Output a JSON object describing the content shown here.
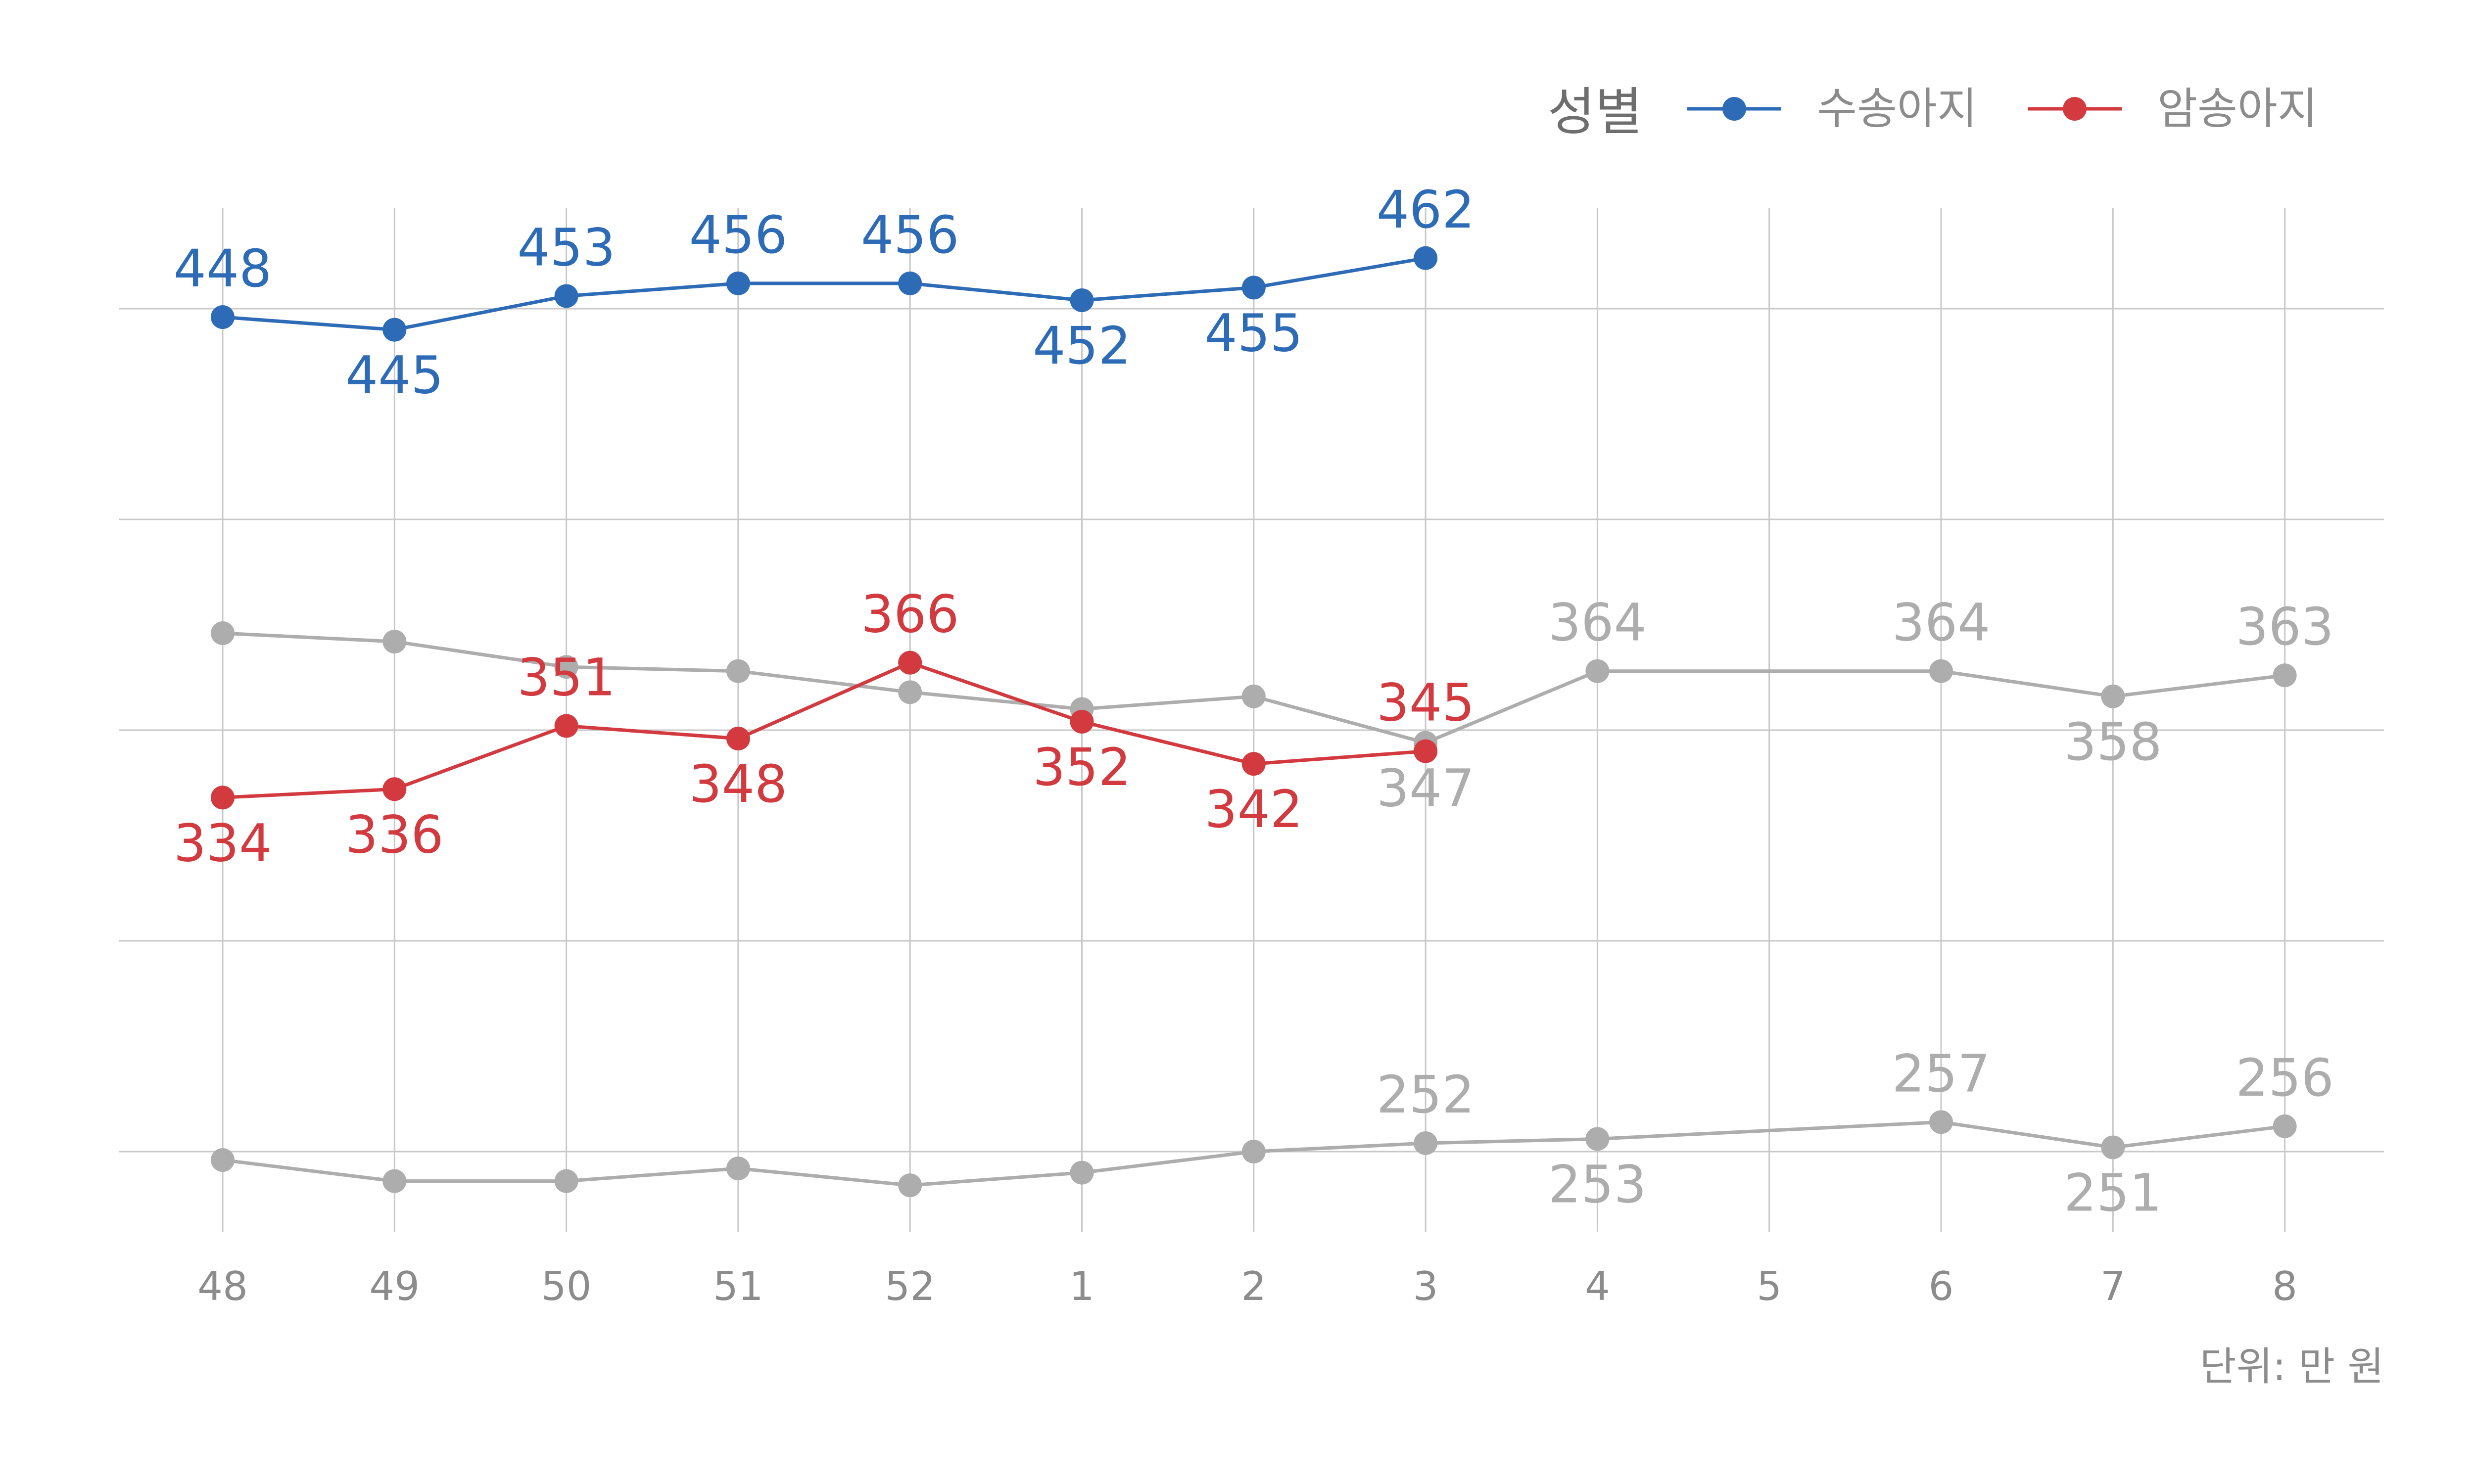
{
  "chart_data": {
    "type": "line",
    "x": [
      "48",
      "49",
      "50",
      "51",
      "52",
      "1",
      "2",
      "3",
      "4",
      "5",
      "6",
      "7",
      "8"
    ],
    "ylim": [
      230,
      480
    ],
    "grid": true,
    "legend": {
      "title": "성별",
      "position": "top-right",
      "entries": [
        "수송아지",
        "암송아지"
      ]
    },
    "caption": "단위: 만 원",
    "series": [
      {
        "name": "수송아지",
        "color": "#2d6bb6",
        "values": [
          448,
          445,
          453,
          456,
          456,
          452,
          455,
          462,
          null,
          null,
          null,
          null,
          null
        ],
        "labels": [
          "448",
          "445",
          "453",
          "456",
          "456",
          "452",
          "455",
          "462",
          "",
          "",
          "",
          "",
          ""
        ]
      },
      {
        "name": "암송아지",
        "color": "#d23a3f",
        "values": [
          334,
          336,
          351,
          348,
          366,
          352,
          342,
          345,
          null,
          null,
          null,
          null,
          null
        ],
        "labels": [
          "334",
          "336",
          "351",
          "348",
          "366",
          "352",
          "342",
          "345",
          "",
          "",
          "",
          "",
          ""
        ]
      },
      {
        "color": "#adadad",
        "values": [
          373,
          371,
          365,
          364,
          359,
          355,
          358,
          347,
          364,
          null,
          364,
          358,
          363
        ],
        "labels": [
          "",
          "",
          "",
          "",
          "",
          "",
          "",
          "347",
          "364",
          "",
          "364",
          "358",
          "363"
        ]
      },
      {
        "color": "#adadad",
        "values": [
          248,
          243,
          243,
          246,
          242,
          245,
          250,
          252,
          253,
          null,
          257,
          251,
          256
        ],
        "labels": [
          "",
          "",
          "",
          "",
          "",
          "",
          "",
          "252",
          "253",
          "",
          "257",
          "251",
          "256"
        ]
      }
    ]
  }
}
